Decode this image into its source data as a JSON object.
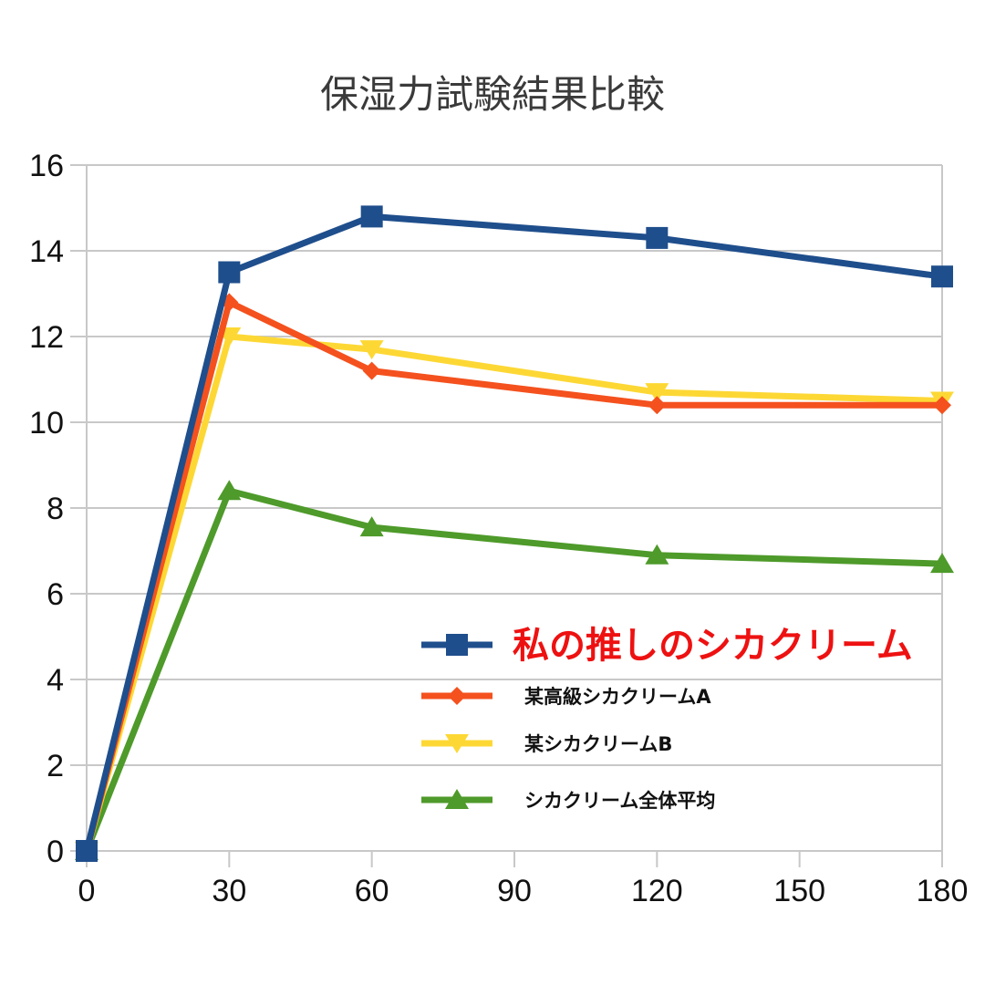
{
  "chart_data": {
    "type": "line",
    "title": "保湿力試験結果比較",
    "xlabel": "",
    "ylabel": "",
    "x": [
      0,
      30,
      60,
      120,
      180
    ],
    "x_ticks": [
      "0",
      "30",
      "60",
      "90",
      "120",
      "150",
      "180"
    ],
    "y_ticks": [
      "0",
      "2",
      "4",
      "6",
      "8",
      "10",
      "12",
      "14",
      "16"
    ],
    "xlim": [
      0,
      180
    ],
    "ylim": [
      0,
      16
    ],
    "grid": true,
    "legend_position": "bottom-right",
    "series": [
      {
        "name": "私の推しのシカクリーム",
        "values": [
          0,
          13.5,
          14.8,
          14.3,
          13.4
        ],
        "color": "#1f4e8c",
        "marker": "square"
      },
      {
        "name": "某高級シカクリームA",
        "values": [
          0,
          12.8,
          11.2,
          10.4,
          10.4
        ],
        "color": "#f4511e",
        "marker": "diamond"
      },
      {
        "name": "某シカクリームB",
        "values": [
          0,
          12.0,
          11.7,
          10.7,
          10.5
        ],
        "color": "#fdd835",
        "marker": "triangle-down"
      },
      {
        "name": "シカクリーム全体平均",
        "values": [
          0,
          8.4,
          7.55,
          6.9,
          6.7
        ],
        "color": "#4e9a2a",
        "marker": "triangle-up"
      }
    ]
  }
}
